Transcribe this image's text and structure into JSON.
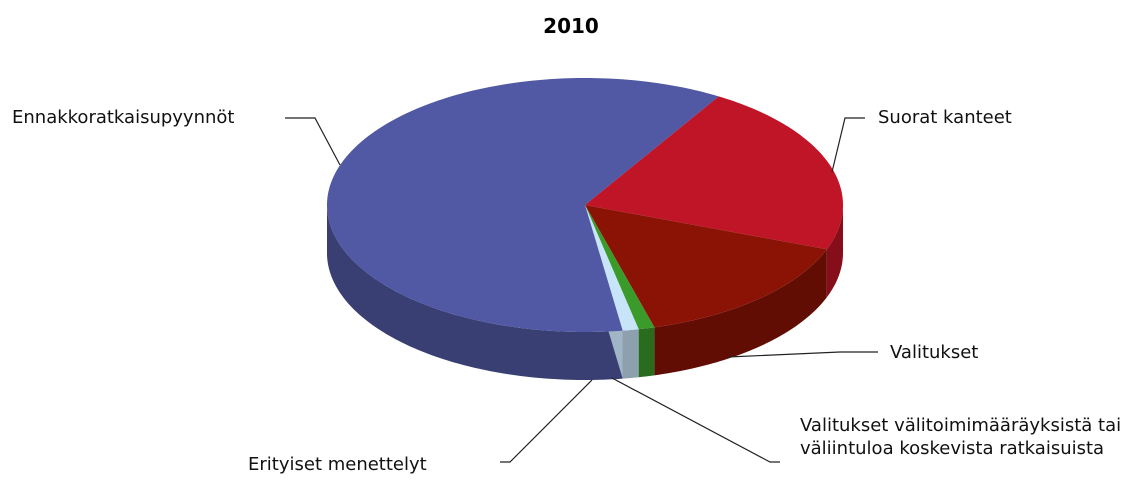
{
  "chart_data": {
    "type": "pie",
    "title": "2010",
    "categories": [
      "Suorat kanteet",
      "Valitukset",
      "Valitukset välitoimimääräyksistä tai väliintuloa koskevista ratkaisuista",
      "Erityiset menettelyt",
      "Ennakkoratkaisupyynnöt"
    ],
    "values": [
      22,
      15,
      1,
      1,
      61
    ],
    "colors": [
      "#c01427",
      "#8b1305",
      "#3a9a2a",
      "#c8e4f8",
      "#5158a4"
    ]
  }
}
